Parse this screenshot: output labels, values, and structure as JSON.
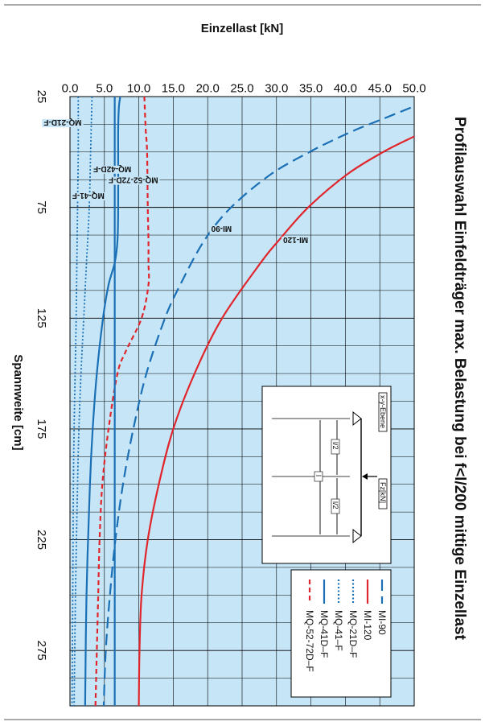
{
  "chart_data": {
    "type": "line",
    "title": "Profilauswahl Einfeldträger max. Belastung bei f<l/200 mittige Einzellast",
    "xlabel": "Spannweite [cm]",
    "ylabel": "Einzellast [kN]",
    "xlim": [
      25,
      300
    ],
    "ylim": [
      0,
      50
    ],
    "xticks": [
      "25",
      "75",
      "125",
      "175",
      "225",
      "275"
    ],
    "yticks": [
      "0.0",
      "5.0",
      "10.0",
      "15.0",
      "20.0",
      "25.0",
      "30.0",
      "35.0",
      "40.0",
      "45.0",
      "50.0"
    ],
    "grid": true,
    "legend_position": "bottom-right",
    "colors": {
      "background": "#c6e6f7",
      "grid": "#000000",
      "blue": "#1a6fb5",
      "red": "#e0262c"
    },
    "series": [
      {
        "name": "MI-90",
        "color": "#1a6fb5",
        "dash": "long",
        "x": [
          30,
          35,
          40,
          45,
          50,
          60,
          75,
          90,
          110,
          125,
          150,
          175,
          200,
          225,
          250,
          275,
          300
        ],
        "y": [
          49.5,
          45.5,
          41.5,
          38.0,
          34.8,
          29.2,
          23.4,
          19.5,
          16.0,
          13.8,
          11.1,
          9.2,
          7.7,
          6.6,
          5.8,
          5.2,
          4.9
        ]
      },
      {
        "name": "MI-120",
        "color": "#e0262c",
        "dash": "solid",
        "x": [
          43,
          50,
          60,
          75,
          90,
          100,
          125,
          150,
          175,
          200,
          225,
          250,
          275,
          300
        ],
        "y": [
          50.0,
          45.5,
          40.3,
          34.6,
          30.3,
          27.7,
          22.1,
          18.1,
          15.0,
          12.9,
          11.3,
          10.4,
          10.1,
          10.0
        ]
      },
      {
        "name": "MQ-21D–F",
        "color": "#1a6fb5",
        "dash": "dotted",
        "x": [
          25,
          50,
          75,
          100,
          125,
          150,
          175,
          200,
          250,
          300
        ],
        "y": [
          3.2,
          3.0,
          2.8,
          2.4,
          2.0,
          1.6,
          1.3,
          1.1,
          0.8,
          0.6
        ]
      },
      {
        "name": "MQ-41–F",
        "color": "#1a6fb5",
        "dash": "dotted",
        "x": [
          25,
          50,
          75,
          100,
          125,
          150,
          175,
          200,
          250,
          300
        ],
        "y": [
          1.2,
          1.2,
          1.1,
          1.0,
          0.9,
          0.75,
          0.6,
          0.5,
          0.4,
          0.3
        ]
      },
      {
        "name": "MQ-41D–F",
        "color": "#1a6fb5",
        "dash": "solid",
        "x": [
          25,
          30,
          40,
          50,
          75,
          90,
          100,
          110,
          125,
          150,
          175,
          200,
          250,
          300
        ],
        "y": [
          7.3,
          7.1,
          7.0,
          7.0,
          7.0,
          6.9,
          6.5,
          5.6,
          4.8,
          3.9,
          3.3,
          2.9,
          2.4,
          2.2
        ]
      },
      {
        "name": "MQ-52-72D–F",
        "color": "#e0262c",
        "dash": "short",
        "x": [
          25,
          40,
          50,
          75,
          90,
          100,
          110,
          125,
          140,
          150,
          175,
          200,
          225,
          250,
          275,
          300
        ],
        "y": [
          10.8,
          11.0,
          11.2,
          11.3,
          11.4,
          11.4,
          11.4,
          10.4,
          8.1,
          6.9,
          5.6,
          4.7,
          4.3,
          4.1,
          3.9,
          3.7
        ]
      },
      {
        "name": "MQ-42D-F (curve label)",
        "color": "#1a6fb5",
        "dash": "solid",
        "x": [
          25,
          300
        ],
        "y": [
          6.5,
          6.5
        ]
      }
    ],
    "curve_labels": [
      {
        "text": "MI-120",
        "x": 90,
        "y": 34.6
      },
      {
        "text": "MI-90",
        "x": 85,
        "y": 23.5
      },
      {
        "text": "MQ-52-72D-F",
        "x": 63,
        "y": 12.8
      },
      {
        "text": "MQ-42D-F",
        "x": 58,
        "y": 8.9
      },
      {
        "text": "MQ-41-F",
        "x": 70,
        "y": 5.0
      },
      {
        "text": "MQ-21D-F",
        "x": 37,
        "y": 1.7
      }
    ],
    "legend": [
      "MI-90",
      "MI-120",
      "MQ-21D–F",
      "MQ-41–F",
      "MQ-41D–F",
      "MQ-52-72D–F"
    ],
    "inset": {
      "plane": "x-y-Ebene",
      "force": "Fz[kN]",
      "half_left": "l/2",
      "half_right": "l/2",
      "span": "l"
    }
  }
}
